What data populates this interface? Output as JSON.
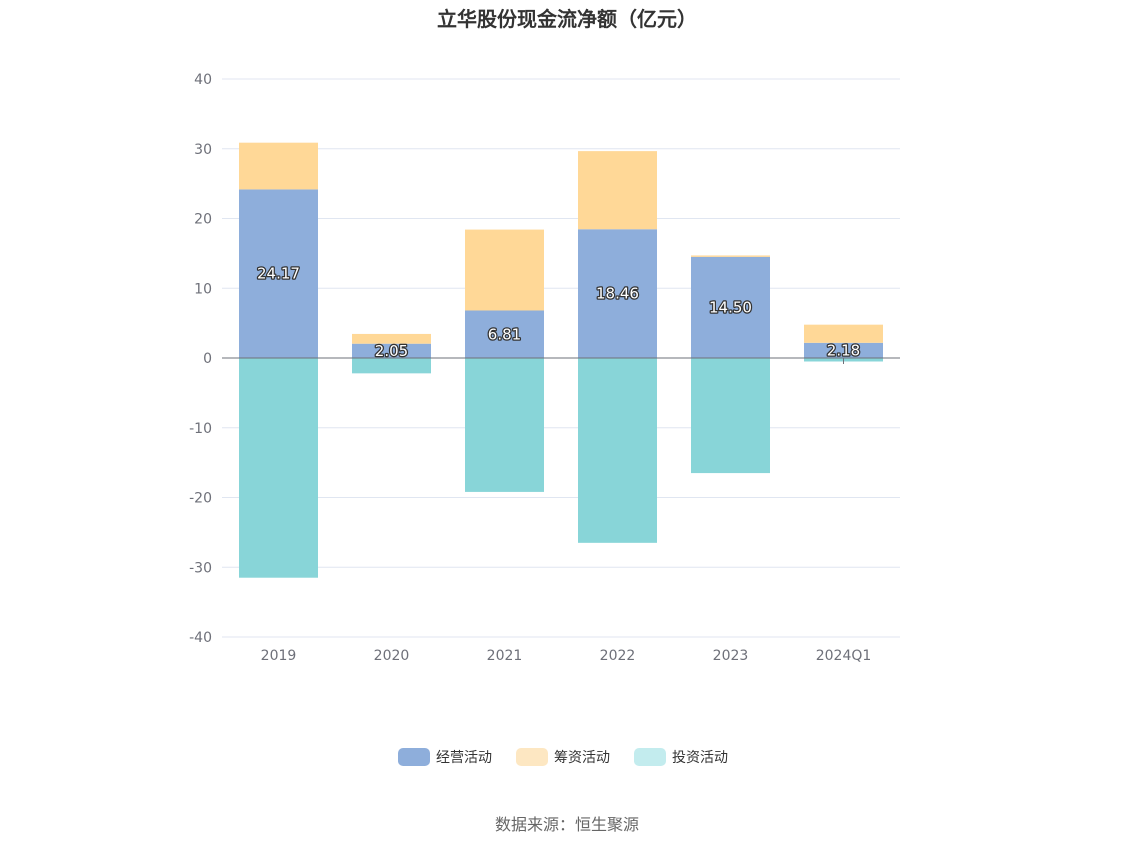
{
  "chart_data": {
    "type": "bar",
    "stacked": true,
    "title": "立华股份现金流净额（亿元）",
    "categories": [
      "2019",
      "2020",
      "2021",
      "2022",
      "2023",
      "2024Q1"
    ],
    "series": [
      {
        "name": "经营活动",
        "color": "#8eaedb",
        "values": [
          24.17,
          2.05,
          6.81,
          18.46,
          14.5,
          2.18
        ]
      },
      {
        "name": "筹资活动",
        "color": "#ffd897",
        "values": [
          6.7,
          1.4,
          11.6,
          11.2,
          0.2,
          2.6
        ]
      },
      {
        "name": "投资活动",
        "color": "#88d5d8",
        "values": [
          -31.5,
          -2.2,
          -19.2,
          -26.5,
          -16.5,
          -0.5
        ]
      }
    ],
    "legend_colors": [
      "#8eaedb",
      "#fde7c2",
      "#c3ecee"
    ],
    "data_labels": [
      "24.17",
      "2.05",
      "6.81",
      "18.46",
      "14.50",
      "2.18"
    ],
    "ylim": [
      -40,
      40
    ],
    "yticks": [
      "40",
      "30",
      "20",
      "10",
      "0",
      "-10",
      "-20",
      "-30",
      "-40"
    ],
    "grid": true,
    "legend_position": "bottom",
    "source": "数据来源：恒生聚源"
  }
}
